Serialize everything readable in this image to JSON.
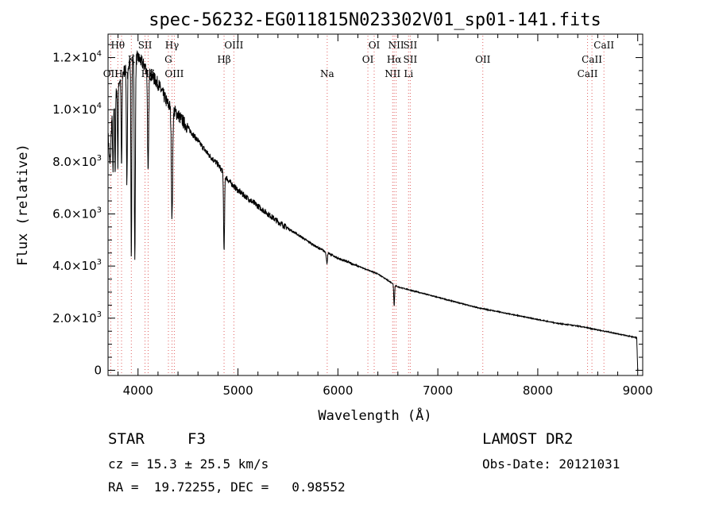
{
  "chart_data": {
    "type": "line",
    "title": "spec-56232-EG011815N023302V01_sp01-141.fits",
    "xlabel": "Wavelength (Å)",
    "ylabel": "Flux (relative)",
    "xlim": [
      3700,
      9050
    ],
    "ylim": [
      -200,
      12900
    ],
    "xticks": [
      4000,
      5000,
      6000,
      7000,
      8000,
      9000
    ],
    "yticks": [
      {
        "value": 0,
        "base": "0",
        "exp": ""
      },
      {
        "value": 2000,
        "base": "2.0×10",
        "exp": "3"
      },
      {
        "value": 4000,
        "base": "4.0×10",
        "exp": "3"
      },
      {
        "value": 6000,
        "base": "6.0×10",
        "exp": "3"
      },
      {
        "value": 8000,
        "base": "8.0×10",
        "exp": "3"
      },
      {
        "value": 10000,
        "base": "1.0×10",
        "exp": "4"
      },
      {
        "value": 12000,
        "base": "1.2×10",
        "exp": "4"
      }
    ],
    "continuum": [
      [
        3700,
        9000
      ],
      [
        3800,
        11000
      ],
      [
        3900,
        11800
      ],
      [
        4000,
        12000
      ],
      [
        4100,
        11500
      ],
      [
        4200,
        11000
      ],
      [
        4300,
        10200
      ],
      [
        4400,
        9800
      ],
      [
        4500,
        9300
      ],
      [
        4600,
        8800
      ],
      [
        4700,
        8300
      ],
      [
        4800,
        7900
      ],
      [
        4900,
        7300
      ],
      [
        5000,
        6900
      ],
      [
        5200,
        6300
      ],
      [
        5400,
        5700
      ],
      [
        5600,
        5200
      ],
      [
        5800,
        4700
      ],
      [
        6000,
        4300
      ],
      [
        6200,
        4000
      ],
      [
        6400,
        3700
      ],
      [
        6600,
        3200
      ],
      [
        6800,
        3000
      ],
      [
        7000,
        2800
      ],
      [
        7200,
        2600
      ],
      [
        7400,
        2400
      ],
      [
        7600,
        2250
      ],
      [
        7800,
        2100
      ],
      [
        8000,
        1950
      ],
      [
        8200,
        1800
      ],
      [
        8400,
        1700
      ],
      [
        8600,
        1550
      ],
      [
        8800,
        1400
      ],
      [
        8990,
        1250
      ],
      [
        9000,
        0
      ]
    ],
    "absorption": [
      {
        "center": 3720,
        "depth": 1500,
        "width": 12
      },
      {
        "center": 3750,
        "depth": 2500,
        "width": 6
      },
      {
        "center": 3771,
        "depth": 2800,
        "width": 5
      },
      {
        "center": 3798,
        "depth": 3000,
        "width": 5
      },
      {
        "center": 3835,
        "depth": 3500,
        "width": 6
      },
      {
        "center": 3889,
        "depth": 4500,
        "width": 7
      },
      {
        "center": 3933,
        "depth": 7500,
        "width": 6
      },
      {
        "center": 3968,
        "depth": 7800,
        "width": 7
      },
      {
        "center": 4101,
        "depth": 4000,
        "width": 8
      },
      {
        "center": 4340,
        "depth": 4200,
        "width": 9
      },
      {
        "center": 4861,
        "depth": 3000,
        "width": 7
      },
      {
        "center": 5890,
        "depth": 400,
        "width": 8
      },
      {
        "center": 6563,
        "depth": 800,
        "width": 6
      }
    ],
    "spectral_lines": [
      {
        "label": "Hθ",
        "x": 3798,
        "row": 1
      },
      {
        "label": "OII",
        "x": 3727,
        "row": 3
      },
      {
        "label": "Hη",
        "x": 3835,
        "row": 3
      },
      {
        "label": "K",
        "x": 3933,
        "row": 2
      },
      {
        "label": "SII",
        "x": 4070,
        "row": 1
      },
      {
        "label": "Hδ",
        "x": 4101,
        "row": 3
      },
      {
        "label": "Hγ",
        "x": 4340,
        "row": 1
      },
      {
        "label": "G",
        "x": 4304,
        "row": 2
      },
      {
        "label": "OIII",
        "x": 4363,
        "row": 3
      },
      {
        "label": "OIII",
        "x": 4959,
        "row": 1
      },
      {
        "label": "Hβ",
        "x": 4861,
        "row": 2
      },
      {
        "label": "Na",
        "x": 5893,
        "row": 3
      },
      {
        "label": "OI",
        "x": 6363,
        "row": 1
      },
      {
        "label": "OI",
        "x": 6300,
        "row": 2
      },
      {
        "label": "NII",
        "x": 6583,
        "row": 1
      },
      {
        "label": "SII",
        "x": 6724,
        "row": 1
      },
      {
        "label": "Hα",
        "x": 6563,
        "row": 2
      },
      {
        "label": "SII",
        "x": 6724,
        "row": 2
      },
      {
        "label": "NII",
        "x": 6548,
        "row": 3
      },
      {
        "label": "Li",
        "x": 6707,
        "row": 3
      },
      {
        "label": "OII",
        "x": 7450,
        "row": 2
      },
      {
        "label": "CaII",
        "x": 8662,
        "row": 1
      },
      {
        "label": "CaII",
        "x": 8542,
        "row": 2
      },
      {
        "label": "CaII",
        "x": 8498,
        "row": 3
      }
    ]
  },
  "footer": {
    "object_class": "STAR",
    "subclass": "F3",
    "cz": "cz = 15.3 ± 25.5 km/s",
    "radec": "RA =  19.72255, DEC =   0.98552",
    "survey": "LAMOST DR2",
    "obs_date": "Obs-Date: 20121031"
  },
  "colors": {
    "line_marker": "#e06060",
    "spectrum": "#000000",
    "axes": "#000000"
  }
}
